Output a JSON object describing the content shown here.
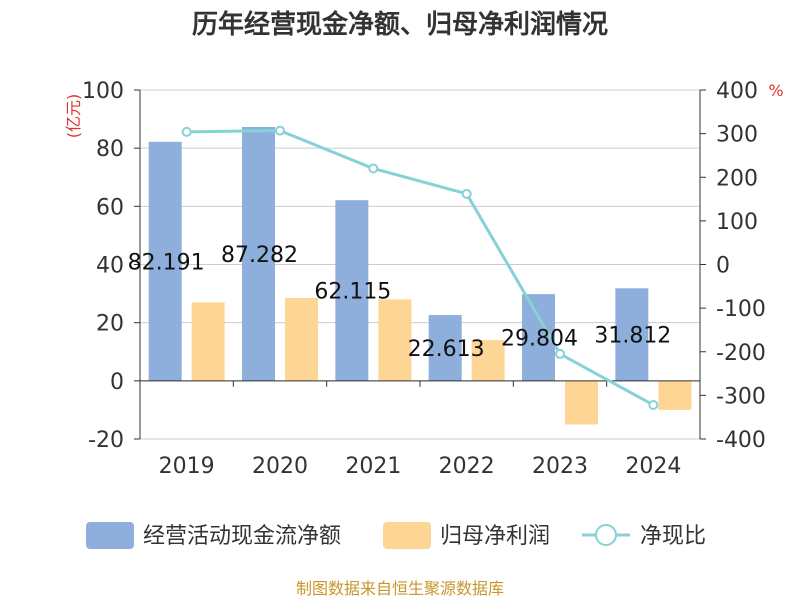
{
  "chart_data": {
    "type": "bar",
    "title": "历年经营现金净额、归母净利润情况",
    "categories": [
      "2019",
      "2020",
      "2021",
      "2022",
      "2023",
      "2024"
    ],
    "series": [
      {
        "name": "经营活动现金流净额",
        "axis": "left",
        "type": "bar",
        "values": [
          82.191,
          87.282,
          62.115,
          22.613,
          29.804,
          31.812
        ],
        "value_labels": [
          "82.191",
          "87.282",
          "62.115",
          "22.613",
          "29.804",
          "31.812"
        ]
      },
      {
        "name": "归母净利润",
        "axis": "left",
        "type": "bar",
        "values": [
          27,
          28.5,
          28,
          14,
          -15,
          -10
        ]
      },
      {
        "name": "净现比",
        "axis": "right",
        "type": "line",
        "values": [
          304,
          307,
          220,
          162,
          -205,
          -322
        ]
      }
    ],
    "left_axis": {
      "unit": "(亿元)",
      "ylim": [
        -20,
        100
      ],
      "ticks": [
        -20,
        0,
        20,
        40,
        60,
        80,
        100
      ]
    },
    "right_axis": {
      "unit": "%",
      "ylim": [
        -400,
        400
      ],
      "ticks": [
        -400,
        -300,
        -200,
        -100,
        0,
        100,
        200,
        300,
        400
      ]
    },
    "grid": true,
    "legend_position": "bottom"
  },
  "source": "制图数据来自恒生聚源数据库",
  "colors": {
    "cash": "#8eaedc",
    "profit": "#fdd696",
    "ratio": "#86d2d6",
    "unit": "#e03030",
    "source": "#c8962a",
    "grid": "#cccccc",
    "axis": "#333333"
  }
}
